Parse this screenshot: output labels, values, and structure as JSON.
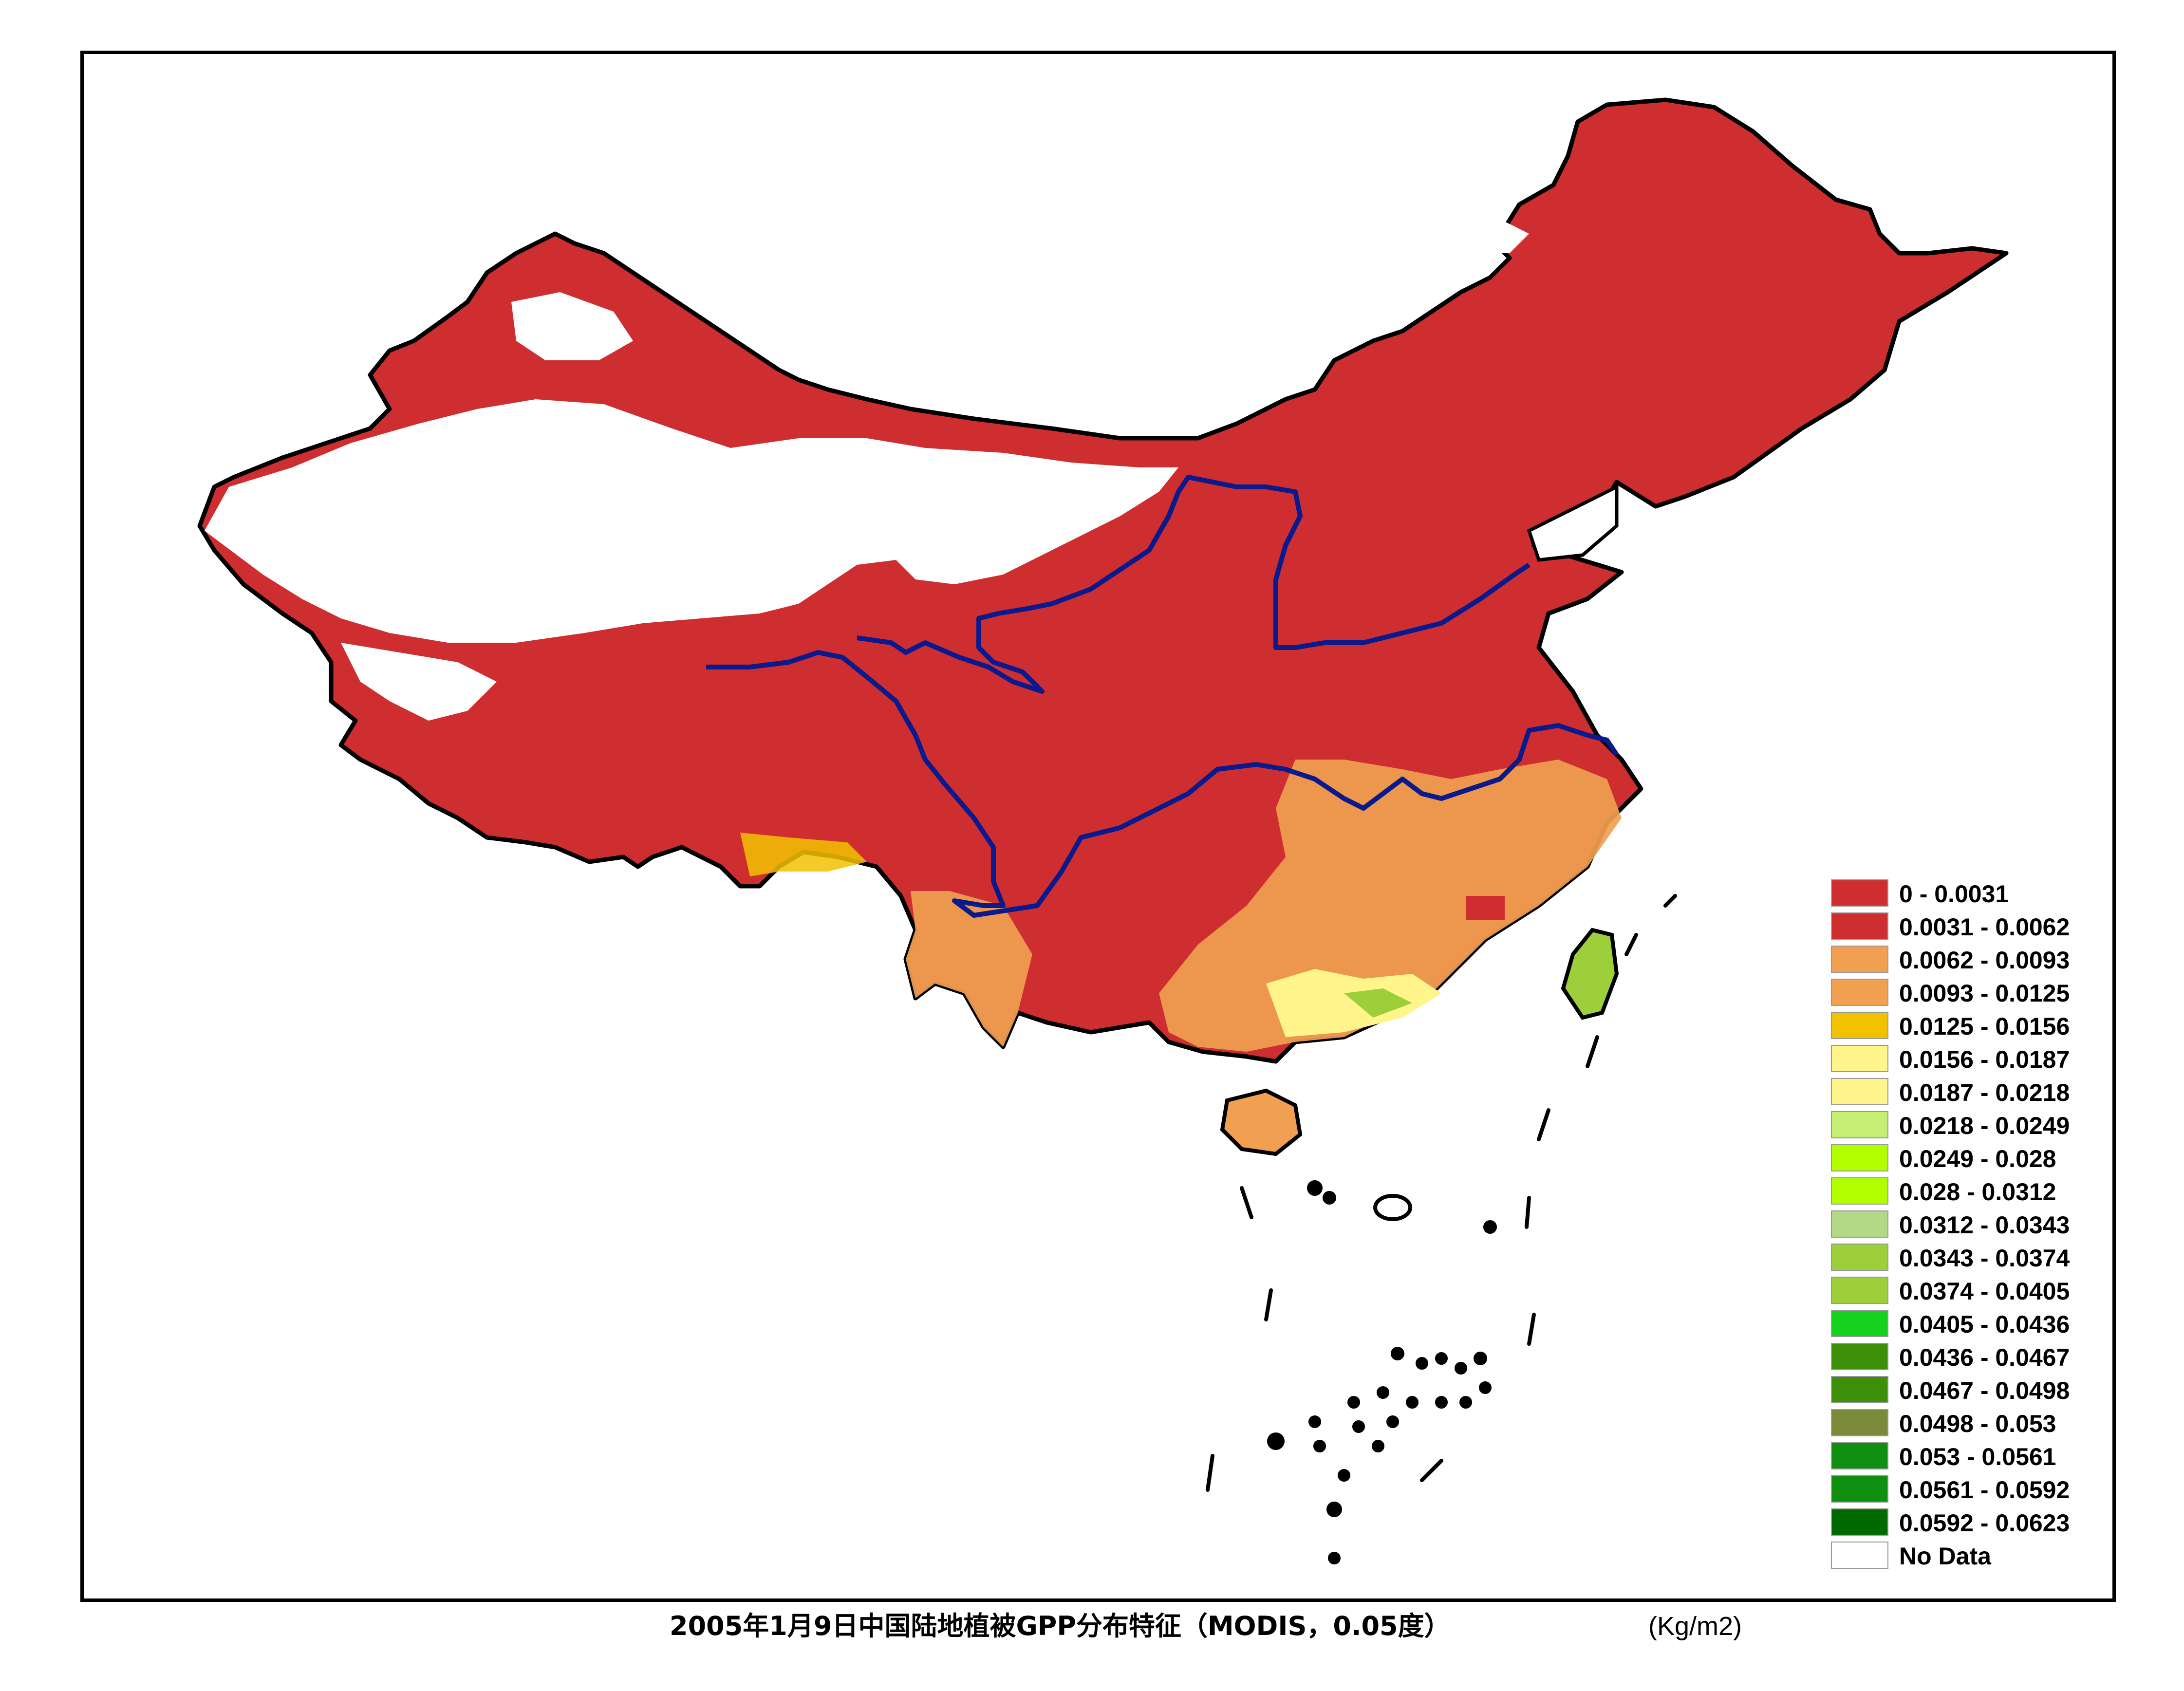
{
  "map": {
    "title": "2005年1月9日中国陆地植被GPP分布特征（MODIS，0.05度）",
    "unit": "(Kg/m2)",
    "colors": {
      "border": "#000000",
      "river": "#0a1a8c",
      "dominant_fill": "#cf2e31",
      "no_data": "#ffffff"
    },
    "legend": [
      {
        "label": "0 - 0.0031",
        "color": "#cf2e31"
      },
      {
        "label": "0.0031 - 0.0062",
        "color": "#cf2e31"
      },
      {
        "label": "0.0062 - 0.0093",
        "color": "#f0a050"
      },
      {
        "label": "0.0093 - 0.0125",
        "color": "#f0a050"
      },
      {
        "label": "0.0125 - 0.0156",
        "color": "#f2c200"
      },
      {
        "label": "0.0156 - 0.0187",
        "color": "#fff58a"
      },
      {
        "label": "0.0187 - 0.0218",
        "color": "#fff58a"
      },
      {
        "label": "0.0218 - 0.0249",
        "color": "#c5ee74"
      },
      {
        "label": "0.0249 - 0.028",
        "color": "#b2ff00"
      },
      {
        "label": "0.028 - 0.0312",
        "color": "#b2ff00"
      },
      {
        "label": "0.0312 - 0.0343",
        "color": "#b3d986"
      },
      {
        "label": "0.0343 - 0.0374",
        "color": "#9ccf3a"
      },
      {
        "label": "0.0374 - 0.0405",
        "color": "#9ccf3a"
      },
      {
        "label": "0.0405 - 0.0436",
        "color": "#14d21e"
      },
      {
        "label": "0.0436 - 0.0467",
        "color": "#3d8f08"
      },
      {
        "label": "0.0467 - 0.0498",
        "color": "#3d8f08"
      },
      {
        "label": "0.0498 - 0.053",
        "color": "#7a8a3a"
      },
      {
        "label": "0.053 - 0.0561",
        "color": "#108e10"
      },
      {
        "label": "0.0561 - 0.0592",
        "color": "#108e10"
      },
      {
        "label": "0.0592 - 0.0623",
        "color": "#006a00"
      },
      {
        "label": "No Data",
        "color": "#ffffff"
      }
    ]
  }
}
